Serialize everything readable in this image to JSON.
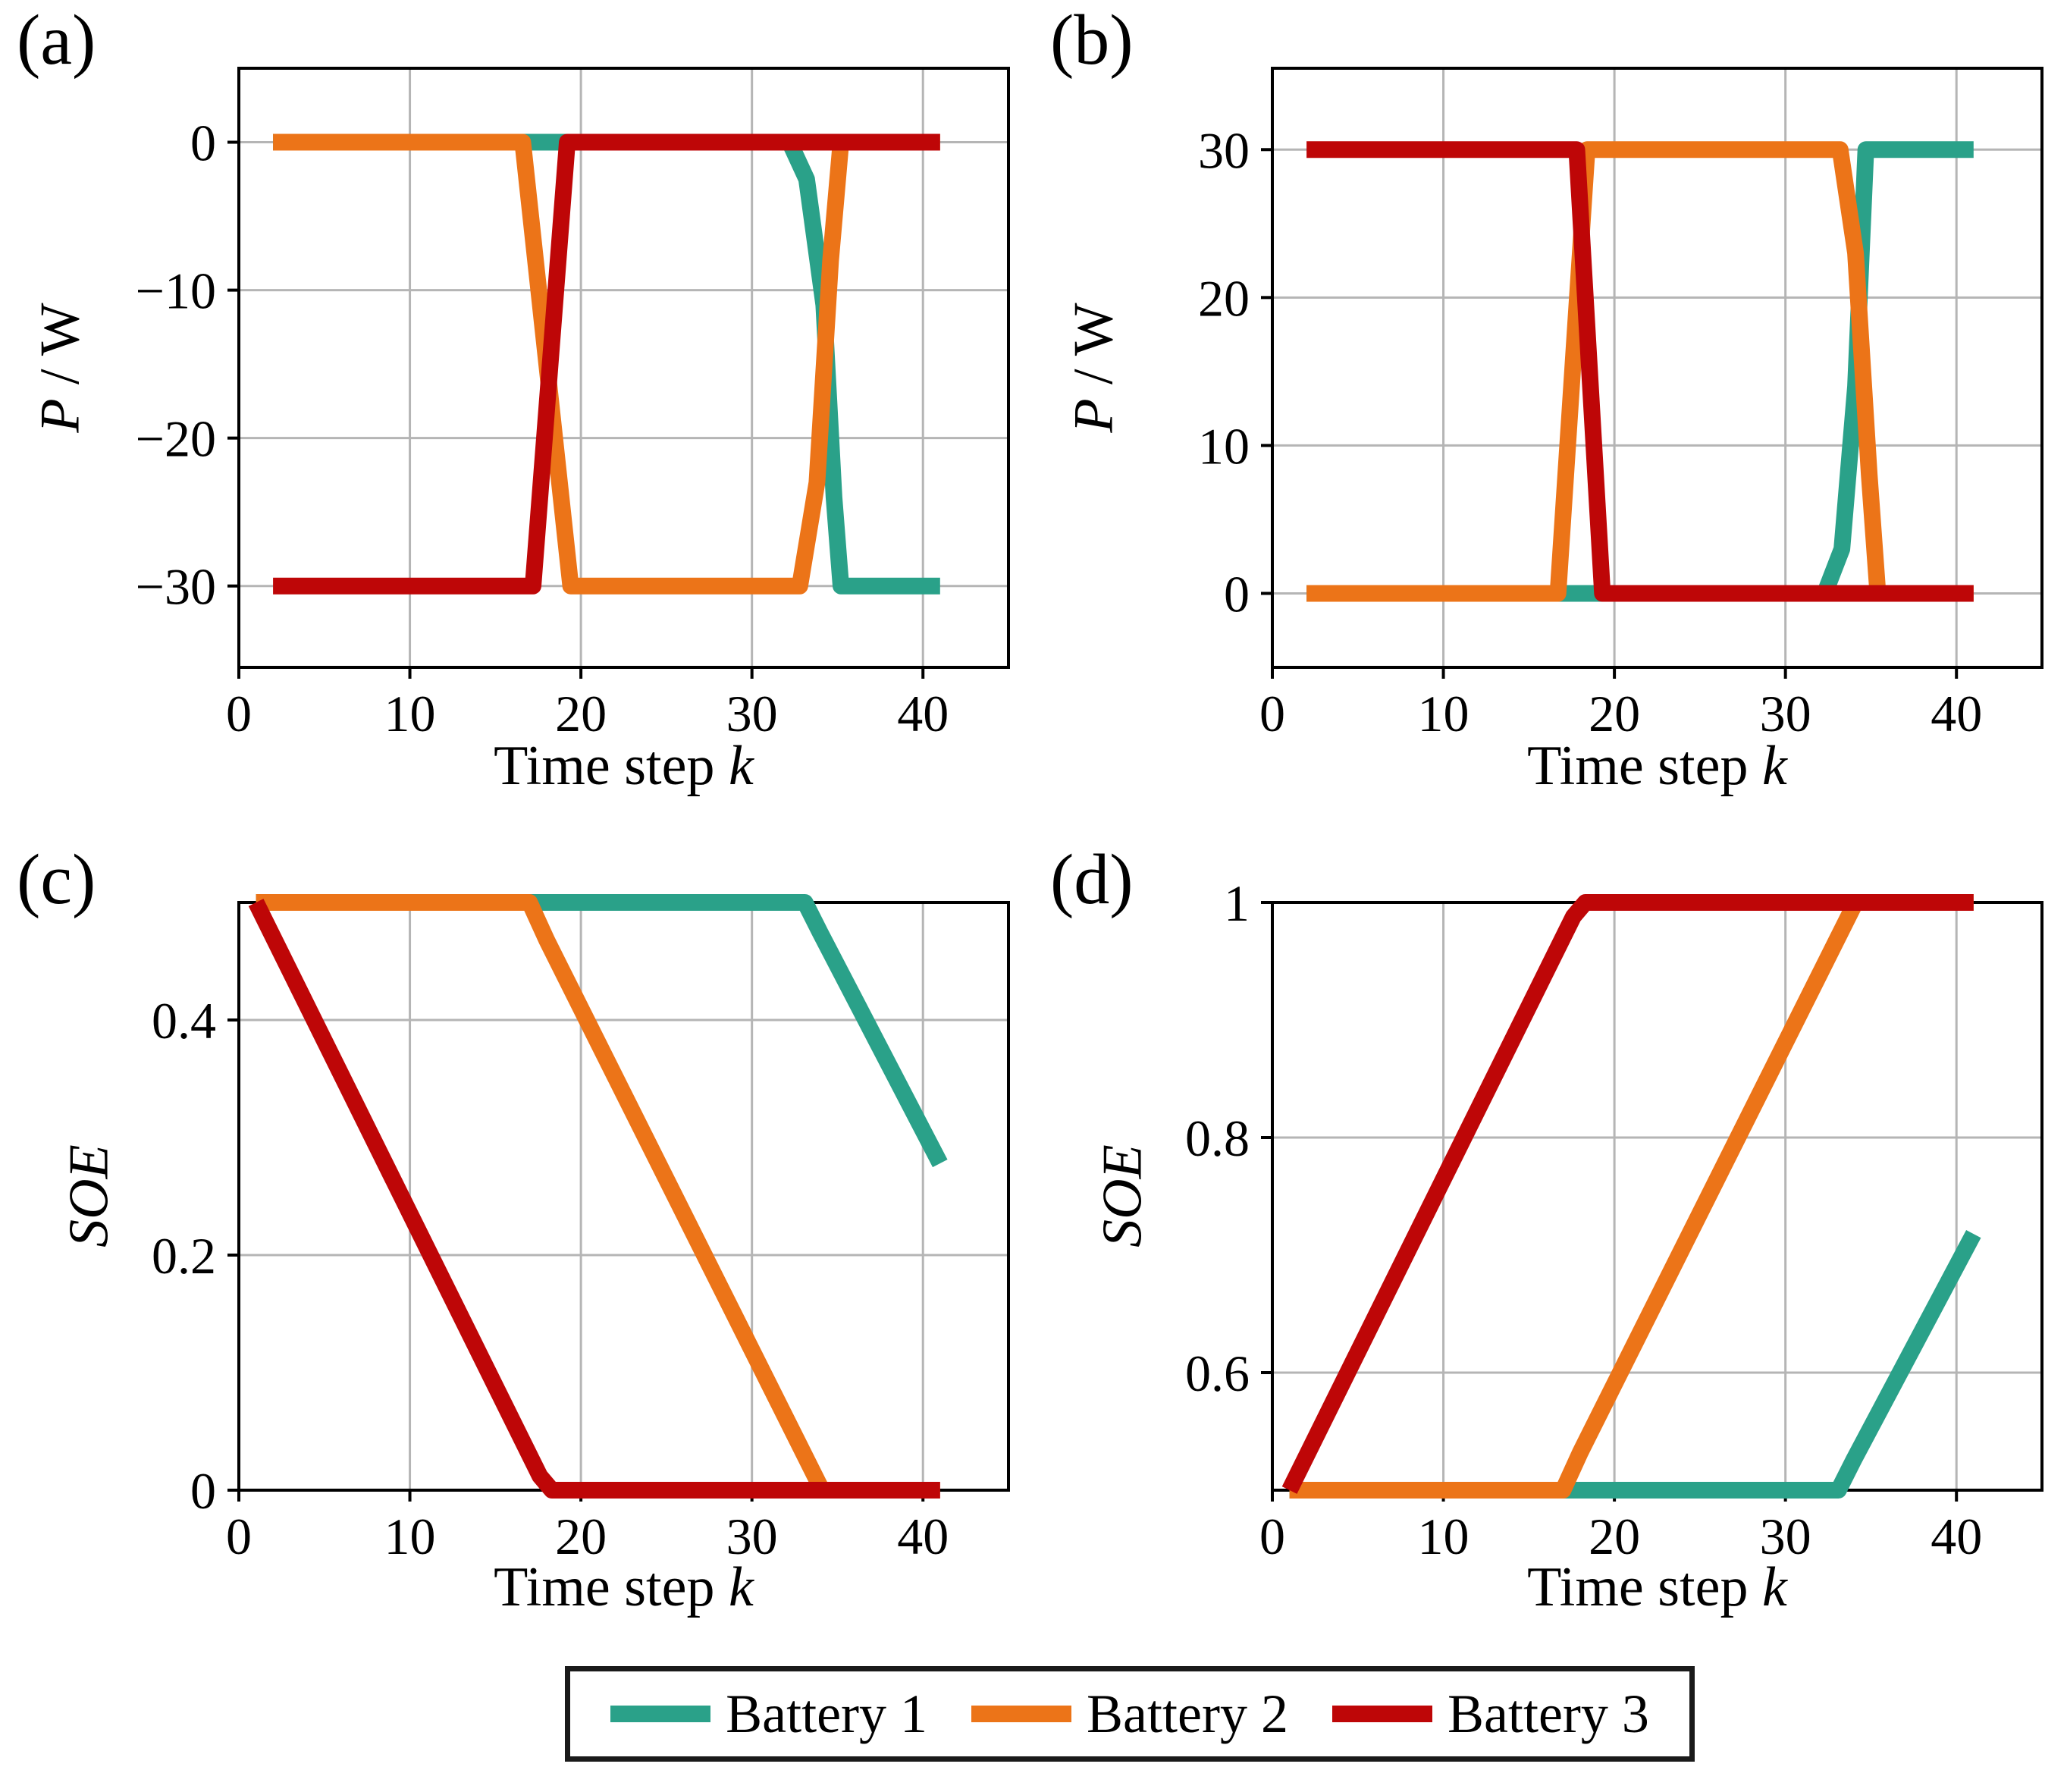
{
  "colors": {
    "battery1": "#2aa189",
    "battery2": "#ec7418",
    "battery3": "#be0607",
    "grid": "#b5b5b5",
    "axis": "#000000"
  },
  "legend": {
    "items": [
      {
        "label": "Battery 1",
        "color_key": "battery1"
      },
      {
        "label": "Battery 2",
        "color_key": "battery2"
      },
      {
        "label": "Battery 3",
        "color_key": "battery3"
      }
    ]
  },
  "chart_data": [
    {
      "type": "line",
      "panel_label": "(a)",
      "xlabel": [
        {
          "text": "Time step ",
          "italic": false
        },
        {
          "text": "k",
          "italic": true
        }
      ],
      "ylabel": [
        {
          "text": "P",
          "italic": true
        },
        {
          "text": " / W",
          "italic": false
        }
      ],
      "xlim": [
        0,
        45
      ],
      "ylim": [
        -35.5,
        5
      ],
      "grid": true,
      "xticks": [
        {
          "v": 0,
          "label": "0"
        },
        {
          "v": 10,
          "label": "10"
        },
        {
          "v": 20,
          "label": "20"
        },
        {
          "v": 30,
          "label": "30"
        },
        {
          "v": 40,
          "label": "40"
        }
      ],
      "yticks": [
        {
          "v": 0,
          "label": "0"
        },
        {
          "v": -10,
          "label": "−10"
        },
        {
          "v": -20,
          "label": "−20"
        },
        {
          "v": -30,
          "label": "−30"
        }
      ],
      "series": [
        {
          "name": "Battery 1",
          "color_key": "battery1",
          "points": [
            [
              2,
              0
            ],
            [
              32.2,
              0
            ],
            [
              33.2,
              -2.5
            ],
            [
              34.2,
              -11
            ],
            [
              34.8,
              -24
            ],
            [
              35.2,
              -30
            ],
            [
              41,
              -30
            ]
          ]
        },
        {
          "name": "Battery 2",
          "color_key": "battery2",
          "points": [
            [
              2,
              0
            ],
            [
              16.6,
              0
            ],
            [
              19.4,
              -30
            ],
            [
              32.8,
              -30
            ],
            [
              33.8,
              -23
            ],
            [
              34.6,
              -8
            ],
            [
              35.2,
              0
            ],
            [
              41,
              0
            ]
          ]
        },
        {
          "name": "Battery 3",
          "color_key": "battery3",
          "points": [
            [
              2,
              -30
            ],
            [
              17.2,
              -30
            ],
            [
              19.2,
              0
            ],
            [
              41,
              0
            ]
          ]
        }
      ]
    },
    {
      "type": "line",
      "panel_label": "(b)",
      "xlabel": [
        {
          "text": "Time step ",
          "italic": false
        },
        {
          "text": "k",
          "italic": true
        }
      ],
      "ylabel": [
        {
          "text": "P",
          "italic": true
        },
        {
          "text": " / W",
          "italic": false
        }
      ],
      "xlim": [
        0,
        45
      ],
      "ylim": [
        -5,
        35.5
      ],
      "grid": true,
      "xticks": [
        {
          "v": 0,
          "label": "0"
        },
        {
          "v": 10,
          "label": "10"
        },
        {
          "v": 20,
          "label": "20"
        },
        {
          "v": 30,
          "label": "30"
        },
        {
          "v": 40,
          "label": "40"
        }
      ],
      "yticks": [
        {
          "v": 0,
          "label": "0"
        },
        {
          "v": 10,
          "label": "10"
        },
        {
          "v": 20,
          "label": "20"
        },
        {
          "v": 30,
          "label": "30"
        }
      ],
      "series": [
        {
          "name": "Battery 1",
          "color_key": "battery1",
          "points": [
            [
              2,
              0
            ],
            [
              32.3,
              0
            ],
            [
              33.3,
              3
            ],
            [
              34.1,
              14
            ],
            [
              34.7,
              30
            ],
            [
              41,
              30
            ]
          ]
        },
        {
          "name": "Battery 2",
          "color_key": "battery2",
          "points": [
            [
              2,
              0
            ],
            [
              16.7,
              0
            ],
            [
              18.4,
              30
            ],
            [
              33.2,
              30
            ],
            [
              34.1,
              23
            ],
            [
              34.9,
              8
            ],
            [
              35.4,
              0
            ],
            [
              41,
              0
            ]
          ]
        },
        {
          "name": "Battery 3",
          "color_key": "battery3",
          "points": [
            [
              2,
              30
            ],
            [
              17.8,
              30
            ],
            [
              19.3,
              0
            ],
            [
              41,
              0
            ]
          ]
        }
      ]
    },
    {
      "type": "line",
      "panel_label": "(c)",
      "xlabel": [
        {
          "text": "Time step ",
          "italic": false
        },
        {
          "text": "k",
          "italic": true
        }
      ],
      "ylabel": [
        {
          "text": "SOE",
          "italic": true
        }
      ],
      "xlim": [
        0,
        45
      ],
      "ylim": [
        0,
        0.5
      ],
      "grid": true,
      "xticks": [
        {
          "v": 0,
          "label": "0"
        },
        {
          "v": 10,
          "label": "10"
        },
        {
          "v": 20,
          "label": "20"
        },
        {
          "v": 30,
          "label": "30"
        },
        {
          "v": 40,
          "label": "40"
        }
      ],
      "yticks": [
        {
          "v": 0,
          "label": "0"
        },
        {
          "v": 0.2,
          "label": "0.2"
        },
        {
          "v": 0.4,
          "label": "0.4"
        }
      ],
      "series": [
        {
          "name": "Battery 1",
          "color_key": "battery1",
          "points": [
            [
              1,
              0.5
            ],
            [
              33.1,
              0.5
            ],
            [
              34,
              0.474
            ],
            [
              41,
              0.278
            ]
          ]
        },
        {
          "name": "Battery 2",
          "color_key": "battery2",
          "points": [
            [
              1,
              0.5
            ],
            [
              17,
              0.5
            ],
            [
              18,
              0.468
            ],
            [
              34.1,
              0
            ],
            [
              41,
              0
            ]
          ]
        },
        {
          "name": "Battery 3",
          "color_key": "battery3",
          "points": [
            [
              1,
              0.5
            ],
            [
              17.6,
              0.012
            ],
            [
              18.3,
              0
            ],
            [
              41,
              0
            ]
          ]
        }
      ]
    },
    {
      "type": "line",
      "panel_label": "(d)",
      "xlabel": [
        {
          "text": "Time step ",
          "italic": false
        },
        {
          "text": "k",
          "italic": true
        }
      ],
      "ylabel": [
        {
          "text": "SOE",
          "italic": true
        }
      ],
      "xlim": [
        0,
        45
      ],
      "ylim": [
        0.5,
        1
      ],
      "grid": true,
      "xticks": [
        {
          "v": 0,
          "label": "0"
        },
        {
          "v": 10,
          "label": "10"
        },
        {
          "v": 20,
          "label": "20"
        },
        {
          "v": 30,
          "label": "30"
        },
        {
          "v": 40,
          "label": "40"
        }
      ],
      "yticks": [
        {
          "v": 0.6,
          "label": "0.6"
        },
        {
          "v": 0.8,
          "label": "0.8"
        },
        {
          "v": 1,
          "label": "1"
        }
      ],
      "series": [
        {
          "name": "Battery 1",
          "color_key": "battery1",
          "points": [
            [
              1,
              0.5
            ],
            [
              33.1,
              0.5
            ],
            [
              34,
              0.526
            ],
            [
              41,
              0.718
            ]
          ]
        },
        {
          "name": "Battery 2",
          "color_key": "battery2",
          "points": [
            [
              1,
              0.5
            ],
            [
              17,
              0.5
            ],
            [
              18,
              0.532
            ],
            [
              34.1,
              1
            ],
            [
              41,
              1
            ]
          ]
        },
        {
          "name": "Battery 3",
          "color_key": "battery3",
          "points": [
            [
              1,
              0.5
            ],
            [
              17.6,
              0.988
            ],
            [
              18.3,
              1
            ],
            [
              41,
              1
            ]
          ]
        }
      ]
    }
  ]
}
